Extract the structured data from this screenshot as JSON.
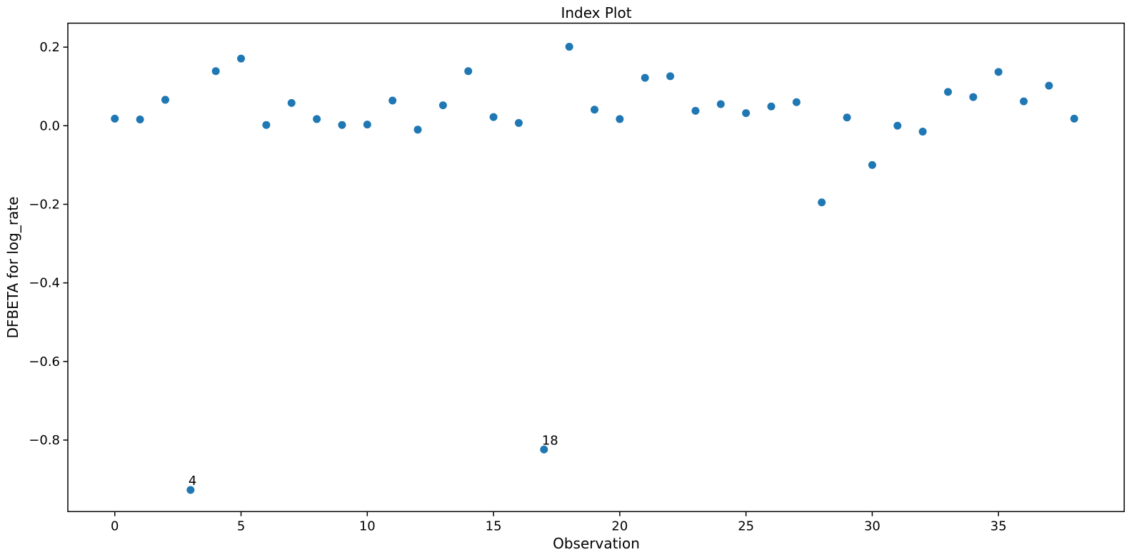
{
  "chart_data": {
    "type": "scatter",
    "title": "Index Plot",
    "xlabel": "Observation",
    "ylabel": "DFBETA for log_rate",
    "marker_color": "#1f77b4",
    "axis_color": "#000000",
    "grid": false,
    "legend": null,
    "xlim": [
      -1.86,
      39.98
    ],
    "ylim": [
      -0.982,
      0.261
    ],
    "xticks": [
      0,
      5,
      10,
      15,
      20,
      25,
      30,
      35
    ],
    "xtick_labels": [
      "0",
      "5",
      "10",
      "15",
      "20",
      "25",
      "30",
      "35"
    ],
    "yticks": [
      0.2,
      0.0,
      -0.2,
      -0.4,
      -0.6,
      -0.8
    ],
    "ytick_labels": [
      "0.2",
      "0.0",
      "−0.2",
      "−0.4",
      "−0.6",
      "−0.8"
    ],
    "x": [
      0,
      1,
      2,
      3,
      4,
      5,
      6,
      7,
      8,
      9,
      10,
      11,
      12,
      13,
      14,
      15,
      16,
      17,
      18,
      19,
      20,
      21,
      22,
      23,
      24,
      25,
      26,
      27,
      28,
      29,
      30,
      31,
      32,
      33,
      34,
      35,
      36,
      37,
      38
    ],
    "y": [
      0.018,
      0.016,
      0.066,
      -0.927,
      0.139,
      0.171,
      0.002,
      0.058,
      0.017,
      0.002,
      0.003,
      0.064,
      -0.01,
      0.052,
      0.139,
      0.022,
      0.007,
      -0.824,
      0.201,
      0.041,
      0.017,
      0.122,
      0.126,
      0.038,
      0.055,
      0.032,
      0.049,
      0.06,
      -0.195,
      0.021,
      -0.1,
      0.0,
      -0.015,
      0.086,
      0.073,
      0.137,
      0.062,
      0.102,
      0.018
    ],
    "annotations": [
      {
        "text": "4",
        "x": 3,
        "y": -0.927
      },
      {
        "text": "18",
        "x": 17,
        "y": -0.824
      }
    ]
  }
}
